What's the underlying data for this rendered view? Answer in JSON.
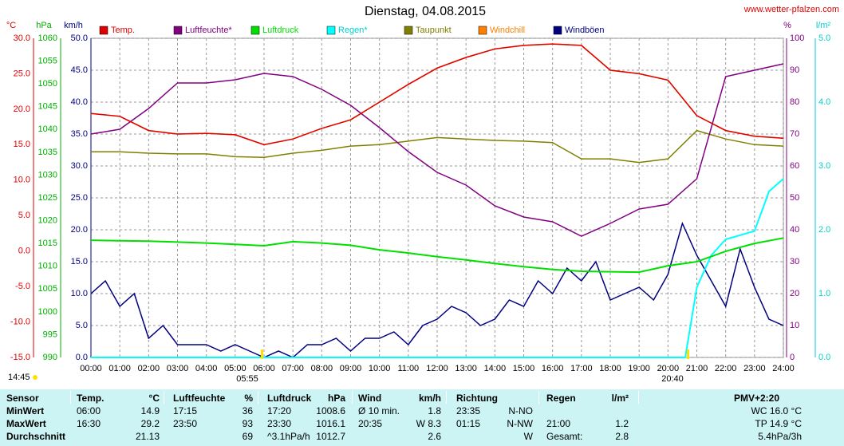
{
  "chart_data": {
    "type": "line",
    "title": "Dienstag, 04.08.2015",
    "source": "www.wetter-pfalzen.com",
    "annotations": [
      "14:45",
      "05:55",
      "20:40"
    ],
    "grid": true,
    "xlim": [
      0,
      24
    ],
    "xticks": [
      {
        "value": 0,
        "label": "00:00"
      },
      {
        "value": 1,
        "label": "01:00"
      },
      {
        "value": 2,
        "label": "02:00"
      },
      {
        "value": 3,
        "label": "03:00"
      },
      {
        "value": 4,
        "label": "04:00"
      },
      {
        "value": 5,
        "label": "05:00"
      },
      {
        "value": 6,
        "label": "06:00"
      },
      {
        "value": 7,
        "label": "07:00"
      },
      {
        "value": 8,
        "label": "08:00"
      },
      {
        "value": 9,
        "label": "09:00"
      },
      {
        "value": 10,
        "label": "10:00"
      },
      {
        "value": 11,
        "label": "11:00"
      },
      {
        "value": 12,
        "label": "12:00"
      },
      {
        "value": 13,
        "label": "13:00"
      },
      {
        "value": 14,
        "label": "14:00"
      },
      {
        "value": 15,
        "label": "15:00"
      },
      {
        "value": 16,
        "label": "16:00"
      },
      {
        "value": 17,
        "label": "17:00"
      },
      {
        "value": 18,
        "label": "18:00"
      },
      {
        "value": 19,
        "label": "19:00"
      },
      {
        "value": 20,
        "label": "20:00"
      },
      {
        "value": 21,
        "label": "21:00"
      },
      {
        "value": 22,
        "label": "22:00"
      },
      {
        "value": 23,
        "label": "23:00"
      },
      {
        "value": 24,
        "label": "24:00"
      }
    ],
    "axes": [
      {
        "unit": "°C",
        "color": "#e00000",
        "lim": [
          -15,
          30
        ],
        "ticks": [
          {
            "value": -15,
            "label": "-15.0"
          },
          {
            "value": -10,
            "label": "-10.0"
          },
          {
            "value": -5,
            "label": "-5.0"
          },
          {
            "value": 0,
            "label": "0.0"
          },
          {
            "value": 5,
            "label": "5.0"
          },
          {
            "value": 10,
            "label": "10.0"
          },
          {
            "value": 15,
            "label": "15.0"
          },
          {
            "value": 20,
            "label": "20.0"
          },
          {
            "value": 25,
            "label": "25.0"
          },
          {
            "value": 30,
            "label": "30.0"
          }
        ]
      },
      {
        "unit": "hPa",
        "color": "#00b000",
        "lim": [
          990,
          1060
        ],
        "ticks": [
          990,
          995,
          1000,
          1005,
          1010,
          1015,
          1020,
          1025,
          1030,
          1035,
          1040,
          1045,
          1050,
          1055,
          1060
        ]
      },
      {
        "unit": "km/h",
        "color": "#000080",
        "lim": [
          0,
          50
        ],
        "ticks": [
          {
            "value": 0,
            "label": "0.0"
          },
          {
            "value": 5,
            "label": "5.0"
          },
          {
            "value": 10,
            "label": "10.0"
          },
          {
            "value": 15,
            "label": "15.0"
          },
          {
            "value": 20,
            "label": "20.0"
          },
          {
            "value": 25,
            "label": "25.0"
          },
          {
            "value": 30,
            "label": "30.0"
          },
          {
            "value": 35,
            "label": "35.0"
          },
          {
            "value": 40,
            "label": "40.0"
          },
          {
            "value": 45,
            "label": "45.0"
          },
          {
            "value": 50,
            "label": "50.0"
          }
        ]
      },
      {
        "unit": "%",
        "color": "#800080",
        "lim": [
          0,
          100
        ],
        "ticks": [
          0,
          10,
          20,
          30,
          40,
          50,
          60,
          70,
          80,
          90,
          100
        ]
      },
      {
        "unit": "l/m²",
        "color": "#00d0d0",
        "lim": [
          0,
          5
        ],
        "ticks": [
          {
            "value": 0,
            "label": "0.0"
          },
          {
            "value": 1,
            "label": "1.0"
          },
          {
            "value": 2,
            "label": "2.0"
          },
          {
            "value": 3,
            "label": "3.0"
          },
          {
            "value": 4,
            "label": "4.0"
          },
          {
            "value": 5,
            "label": "5.0"
          }
        ]
      }
    ],
    "series": [
      {
        "name": "Temp.",
        "color": "#e00000",
        "axis": 0,
        "x": [
          0,
          1,
          2,
          3,
          4,
          5,
          6,
          7,
          8,
          9,
          10,
          11,
          12,
          13,
          14,
          15,
          16,
          17,
          18,
          19,
          20,
          21,
          22,
          23,
          24
        ],
        "values": [
          19.4,
          19.0,
          17.0,
          16.5,
          16.6,
          16.4,
          15.0,
          15.8,
          17.3,
          18.5,
          21.0,
          23.5,
          25.8,
          27.3,
          28.5,
          29.0,
          29.2,
          29.0,
          25.5,
          25.0,
          24.1,
          19.1,
          17.0,
          16.2,
          15.9
        ]
      },
      {
        "name": "Luftfeuchte*",
        "color": "#800080",
        "axis": 3,
        "x": [
          0,
          1,
          2,
          3,
          4,
          5,
          6,
          7,
          8,
          9,
          10,
          11,
          12,
          13,
          14,
          15,
          16,
          17,
          18,
          19,
          20,
          21,
          22,
          23,
          24
        ],
        "values": [
          70,
          71.5,
          78,
          86,
          86,
          87,
          89,
          88,
          84,
          79,
          72,
          64.5,
          58,
          54,
          47.5,
          44,
          42.5,
          38,
          42,
          46.5,
          48,
          56,
          88,
          90,
          92
        ]
      },
      {
        "name": "Luftdruck",
        "color": "#00e000",
        "axis": 1,
        "x": [
          0,
          1,
          2,
          3,
          4,
          5,
          6,
          7,
          8,
          9,
          10,
          11,
          12,
          13,
          14,
          15,
          16,
          17,
          18,
          19,
          20,
          21,
          22,
          23,
          24
        ],
        "values": [
          1015.7,
          1015.6,
          1015.5,
          1015.3,
          1015.1,
          1014.8,
          1014.5,
          1015.4,
          1015.1,
          1014.6,
          1013.6,
          1012.9,
          1012.1,
          1011.4,
          1010.6,
          1009.9,
          1009.3,
          1008.9,
          1008.8,
          1008.7,
          1010.1,
          1011.0,
          1013.3,
          1015.0,
          1016.2
        ]
      },
      {
        "name": "Regen*",
        "color": "#00ffff",
        "axis": 4,
        "x": [
          0,
          20.6,
          21,
          21.5,
          22,
          23,
          23.3,
          23.5,
          24
        ],
        "values": [
          0,
          0,
          1.1,
          1.6,
          1.85,
          1.98,
          2.35,
          2.6,
          2.8
        ]
      },
      {
        "name": "Taupunkt",
        "color": "#808000",
        "axis": 0,
        "x": [
          0,
          1,
          2,
          3,
          4,
          5,
          6,
          7,
          8,
          9,
          10,
          11,
          12,
          13,
          14,
          15,
          16,
          17,
          18,
          19,
          20,
          21,
          22,
          23,
          24
        ],
        "values": [
          14.0,
          14.0,
          13.8,
          13.7,
          13.7,
          13.3,
          13.2,
          13.8,
          14.2,
          14.8,
          15.0,
          15.5,
          16.0,
          15.8,
          15.6,
          15.5,
          15.3,
          13.0,
          13.0,
          12.5,
          13.0,
          17.0,
          15.8,
          15.0,
          14.8
        ]
      },
      {
        "name": "Windchill",
        "color": "#ff8000",
        "axis": 0,
        "x": [
          0,
          1,
          2,
          3,
          4,
          5,
          6,
          7,
          8,
          9,
          10,
          11,
          12,
          13,
          14,
          15,
          16,
          17,
          18,
          19,
          20,
          21,
          22,
          23,
          24
        ],
        "values": [
          19.4,
          19.0,
          17.0,
          16.5,
          16.6,
          16.4,
          15.0,
          15.8,
          17.3,
          18.5,
          21.0,
          23.5,
          25.8,
          27.3,
          28.5,
          29.0,
          29.2,
          29.0,
          25.5,
          25.0,
          24.1,
          19.1,
          17.0,
          16.2,
          15.9
        ]
      },
      {
        "name": "Windböen",
        "color": "#000080",
        "axis": 2,
        "x": [
          0,
          0.5,
          1,
          1.5,
          2,
          2.5,
          3,
          3.5,
          4,
          4.5,
          5,
          5.5,
          6,
          6.5,
          7,
          7.5,
          8,
          8.5,
          9,
          9.5,
          10,
          10.5,
          11,
          11.5,
          12,
          12.5,
          13,
          13.5,
          14,
          14.5,
          15,
          15.5,
          16,
          16.5,
          17,
          17.5,
          18,
          18.5,
          19,
          19.5,
          20,
          20.5,
          21,
          21.5,
          22,
          22.5,
          23,
          23.5,
          24
        ],
        "values": [
          10,
          12,
          8,
          10,
          3,
          5,
          2,
          2,
          2,
          1,
          2,
          1,
          0,
          1,
          0,
          2,
          2,
          3,
          1,
          3,
          3,
          4,
          2,
          5,
          6,
          8,
          7,
          5,
          6,
          9,
          8,
          12,
          10,
          14,
          12,
          15,
          9,
          10,
          11,
          9,
          13,
          21,
          16,
          12,
          8,
          17,
          11,
          6,
          5
        ]
      }
    ]
  },
  "table": {
    "rows": [
      [
        "Sensor",
        "Temp.",
        "°C",
        "Luftfeuchte",
        "%",
        "Luftdruck",
        "hPa",
        "Wind",
        "km/h",
        "Richtung",
        null,
        "Regen",
        "l/m²",
        "PMV+2:20"
      ],
      [
        "MinWert",
        "06:00",
        "14.9",
        "17:15",
        "36",
        "17:20",
        "1008.6",
        "Ø 10 min.",
        "1.8",
        "23:35",
        "N-NO",
        null,
        null,
        "WC 16.0 °C"
      ],
      [
        "MaxWert",
        "16:30",
        "29.2",
        "23:50",
        "93",
        "23:30",
        "1016.1",
        "20:35",
        "W 8.3",
        "01:15",
        "N-NW",
        "21:00",
        "1.2",
        "TP 14.9 °C"
      ],
      [
        "Durchschnitt",
        null,
        "21.13",
        null,
        "69",
        "^3.1hPa/h",
        "1012.7",
        null,
        "2.6",
        null,
        "W",
        "Gesamt:",
        "2.8",
        "5.4hPa/3h"
      ]
    ]
  }
}
